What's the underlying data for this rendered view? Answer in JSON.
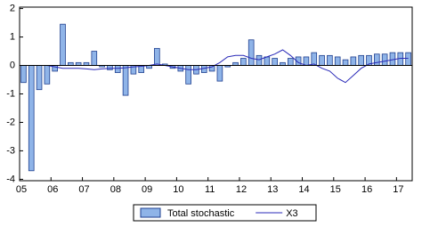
{
  "chart_data": {
    "type": "combo",
    "categories": [
      "05",
      null,
      null,
      null,
      "06",
      null,
      null,
      null,
      "07",
      null,
      null,
      null,
      "08",
      null,
      null,
      null,
      "09",
      null,
      null,
      null,
      "10",
      null,
      null,
      null,
      "11",
      null,
      null,
      null,
      "12",
      null,
      null,
      null,
      "13",
      null,
      null,
      null,
      "14",
      null,
      null,
      null,
      "15",
      null,
      null,
      null,
      "16",
      null,
      null,
      null,
      "17",
      null
    ],
    "series": [
      {
        "name": "Total stochastic",
        "type": "bar",
        "color": "#8fb4e8",
        "values": [
          -0.6,
          -3.7,
          -0.85,
          -0.65,
          -0.2,
          1.45,
          0.1,
          0.1,
          0.1,
          0.5,
          -0.05,
          -0.15,
          -0.25,
          -1.05,
          -0.3,
          -0.25,
          -0.1,
          0.6,
          0.05,
          -0.1,
          -0.2,
          -0.65,
          -0.3,
          -0.25,
          -0.2,
          -0.55,
          -0.05,
          0.1,
          0.25,
          0.9,
          0.35,
          0.3,
          0.25,
          0.1,
          0.25,
          0.3,
          0.3,
          0.45,
          0.35,
          0.35,
          0.3,
          0.2,
          0.3,
          0.35,
          0.35,
          0.4,
          0.4,
          0.45,
          0.45,
          0.45
        ]
      },
      {
        "name": "X3",
        "type": "line",
        "color": "#2a2ab8",
        "values": [
          null,
          null,
          null,
          0.0,
          -0.05,
          -0.1,
          -0.1,
          -0.1,
          -0.12,
          -0.15,
          -0.12,
          -0.1,
          -0.1,
          -0.08,
          -0.05,
          -0.03,
          0.0,
          0.05,
          0.0,
          -0.05,
          -0.1,
          -0.15,
          -0.15,
          -0.1,
          -0.05,
          0.1,
          0.3,
          0.35,
          0.35,
          0.25,
          0.2,
          0.3,
          0.4,
          0.55,
          0.35,
          0.1,
          0.0,
          0.05,
          -0.1,
          -0.2,
          -0.45,
          -0.6,
          -0.35,
          -0.1,
          0.05,
          0.1,
          0.15,
          0.2,
          0.25,
          0.25
        ]
      }
    ],
    "ylim": [
      -4.05,
      2.05
    ],
    "yticks": [
      2,
      1,
      0,
      -1,
      -2,
      -3,
      -4
    ],
    "grid": false,
    "legend": "bottom"
  }
}
